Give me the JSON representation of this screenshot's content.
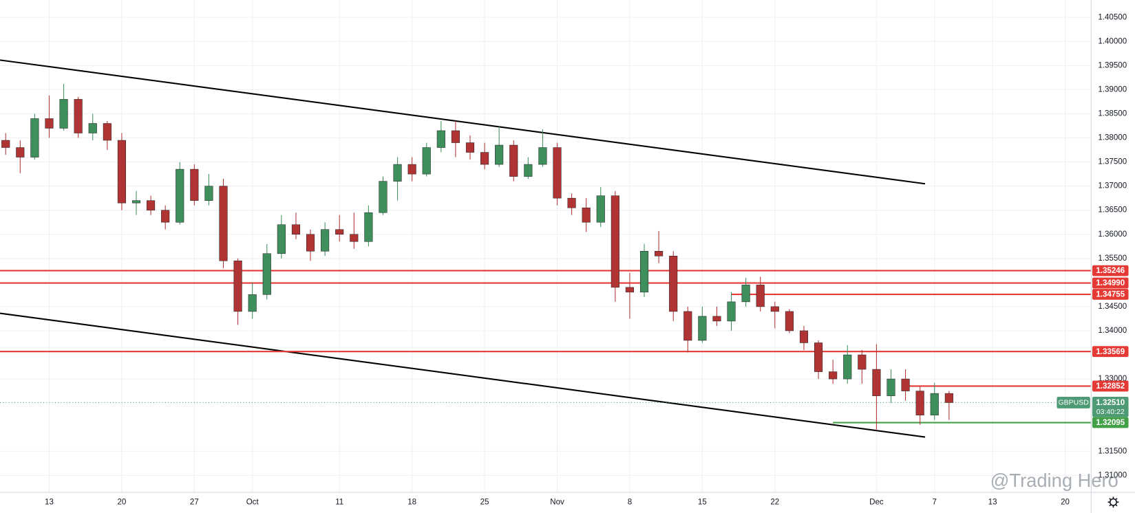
{
  "chart_data": {
    "type": "candlestick",
    "symbol": "GBPUSD",
    "x": [
      -3,
      -2,
      -1,
      0,
      1,
      2,
      3,
      4,
      5,
      6,
      7,
      8,
      9,
      10,
      11,
      12,
      13,
      14,
      15,
      16,
      17,
      18,
      19,
      20,
      21,
      22,
      23,
      24,
      25,
      26,
      27,
      28,
      29,
      30,
      31,
      32,
      33,
      34,
      35,
      36,
      37,
      38,
      39,
      40,
      41,
      42,
      43,
      44,
      45,
      46,
      47,
      48,
      49,
      50,
      51,
      52,
      53,
      54,
      55,
      56,
      57,
      58,
      59,
      60,
      61,
      62
    ],
    "open": [
      1.3795,
      1.378,
      1.376,
      1.384,
      1.382,
      1.388,
      1.381,
      1.383,
      1.3795,
      1.3665,
      1.367,
      1.365,
      1.3625,
      1.3735,
      1.367,
      1.37,
      1.3545,
      1.344,
      1.3475,
      1.356,
      1.362,
      1.36,
      1.3565,
      1.361,
      1.36,
      1.3585,
      1.3645,
      1.371,
      1.3745,
      1.3725,
      1.378,
      1.3815,
      1.379,
      1.377,
      1.3745,
      1.3785,
      1.372,
      1.3745,
      1.378,
      1.3675,
      1.3655,
      1.3625,
      1.368,
      1.349,
      1.348,
      1.3565,
      1.3555,
      1.344,
      1.338,
      1.343,
      1.342,
      1.346,
      1.3495,
      1.345,
      1.344,
      1.34,
      1.3375,
      1.3315,
      1.33,
      1.335,
      1.332,
      1.3265,
      1.33,
      1.3275,
      1.3225,
      1.327
    ],
    "high": [
      1.381,
      1.3795,
      1.385,
      1.3888,
      1.3912,
      1.3885,
      1.385,
      1.3835,
      1.381,
      1.369,
      1.368,
      1.366,
      1.375,
      1.3745,
      1.3725,
      1.3715,
      1.355,
      1.35,
      1.358,
      1.364,
      1.3645,
      1.361,
      1.3625,
      1.364,
      1.3645,
      1.366,
      1.372,
      1.376,
      1.376,
      1.379,
      1.3835,
      1.3835,
      1.3805,
      1.379,
      1.3825,
      1.3795,
      1.376,
      1.3818,
      1.379,
      1.3685,
      1.3675,
      1.3698,
      1.369,
      1.352,
      1.358,
      1.3607,
      1.3565,
      1.345,
      1.345,
      1.345,
      1.348,
      1.351,
      1.3512,
      1.346,
      1.3445,
      1.341,
      1.338,
      1.334,
      1.337,
      1.336,
      1.3372,
      1.332,
      1.332,
      1.3285,
      1.3292,
      1.3275
    ],
    "low": [
      1.3765,
      1.3727,
      1.3755,
      1.38,
      1.3815,
      1.38,
      1.3795,
      1.3775,
      1.365,
      1.364,
      1.364,
      1.361,
      1.362,
      1.366,
      1.366,
      1.353,
      1.3412,
      1.3425,
      1.3465,
      1.355,
      1.359,
      1.3545,
      1.3555,
      1.3585,
      1.357,
      1.3575,
      1.364,
      1.367,
      1.371,
      1.372,
      1.377,
      1.376,
      1.3755,
      1.3735,
      1.374,
      1.371,
      1.3715,
      1.374,
      1.366,
      1.364,
      1.3605,
      1.3615,
      1.346,
      1.3425,
      1.347,
      1.354,
      1.342,
      1.3355,
      1.3375,
      1.341,
      1.34,
      1.345,
      1.344,
      1.3405,
      1.3395,
      1.336,
      1.33,
      1.329,
      1.329,
      1.329,
      1.3193,
      1.325,
      1.3255,
      1.3205,
      1.3215,
      1.3215
    ],
    "close": [
      1.378,
      1.376,
      1.384,
      1.382,
      1.388,
      1.381,
      1.383,
      1.3795,
      1.3665,
      1.367,
      1.365,
      1.3625,
      1.3735,
      1.367,
      1.37,
      1.3545,
      1.344,
      1.3475,
      1.356,
      1.362,
      1.36,
      1.3565,
      1.361,
      1.36,
      1.3585,
      1.3645,
      1.371,
      1.3745,
      1.3725,
      1.378,
      1.3815,
      1.379,
      1.377,
      1.3745,
      1.3785,
      1.372,
      1.3745,
      1.378,
      1.3675,
      1.3655,
      1.3625,
      1.368,
      1.349,
      1.348,
      1.3565,
      1.3555,
      1.344,
      1.338,
      1.343,
      1.342,
      1.346,
      1.3495,
      1.345,
      1.344,
      1.34,
      1.3375,
      1.3315,
      1.33,
      1.335,
      1.332,
      1.3265,
      1.33,
      1.3275,
      1.3225,
      1.327,
      1.3251
    ],
    "up_color": "#3f8f5d",
    "down_color": "#b03434",
    "xlim": [
      -3.39,
      71.77
    ],
    "ylim": [
      1.30655,
      1.4086
    ],
    "xticks": [
      {
        "value": 0,
        "label": "13"
      },
      {
        "value": 5,
        "label": "20"
      },
      {
        "value": 10,
        "label": "27"
      },
      {
        "value": 14,
        "label": "Oct"
      },
      {
        "value": 20,
        "label": "11"
      },
      {
        "value": 25,
        "label": "18"
      },
      {
        "value": 30,
        "label": "25"
      },
      {
        "value": 35,
        "label": "Nov"
      },
      {
        "value": 40,
        "label": "8"
      },
      {
        "value": 45,
        "label": "15"
      },
      {
        "value": 50,
        "label": "22"
      },
      {
        "value": 57,
        "label": "Dec"
      },
      {
        "value": 61,
        "label": "7"
      },
      {
        "value": 65,
        "label": "13"
      },
      {
        "value": 70,
        "label": "20"
      }
    ],
    "yticks": [
      {
        "value": 1.405,
        "label": "1.40500"
      },
      {
        "value": 1.4,
        "label": "1.40000"
      },
      {
        "value": 1.395,
        "label": "1.39500"
      },
      {
        "value": 1.39,
        "label": "1.39000"
      },
      {
        "value": 1.385,
        "label": "1.38500"
      },
      {
        "value": 1.38,
        "label": "1.38000"
      },
      {
        "value": 1.375,
        "label": "1.37500"
      },
      {
        "value": 1.37,
        "label": "1.37000"
      },
      {
        "value": 1.365,
        "label": "1.36500"
      },
      {
        "value": 1.36,
        "label": "1.36000"
      },
      {
        "value": 1.355,
        "label": "1.35500"
      },
      {
        "value": 1.345,
        "label": "1.34500"
      },
      {
        "value": 1.34,
        "label": "1.34000"
      },
      {
        "value": 1.33,
        "label": "1.33000"
      },
      {
        "value": 1.315,
        "label": "1.31500"
      },
      {
        "value": 1.31,
        "label": "1.31000"
      }
    ],
    "grid": true,
    "levels": [
      {
        "value": 1.35246,
        "label": "1.35246",
        "color": "#e53935"
      },
      {
        "value": 1.3499,
        "label": "1.34990",
        "color": "#e53935"
      },
      {
        "value": 1.34755,
        "label": "1.34755",
        "color": "#e53935",
        "x_start": 47
      },
      {
        "value": 1.33569,
        "label": "1.33569",
        "color": "#e53935"
      },
      {
        "value": 1.32852,
        "label": "1.32852",
        "color": "#e53935",
        "x_start": 59
      },
      {
        "value": 1.32095,
        "label": "1.32095",
        "color": "#43a047",
        "x_start": 54
      }
    ],
    "trend_lines": [
      {
        "x": [
          -3.39,
          60.35
        ],
        "y": [
          1.39614,
          1.37048
        ],
        "color": "#000000"
      },
      {
        "x": [
          -3.39,
          60.35
        ],
        "y": [
          1.34362,
          1.31795
        ],
        "color": "#000000"
      }
    ],
    "last_price": {
      "value": 1.3251,
      "label": "1.32510"
    },
    "countdown": "03:40:22",
    "price_color": "#4e9a74",
    "watermark": "@Trading Hero"
  }
}
